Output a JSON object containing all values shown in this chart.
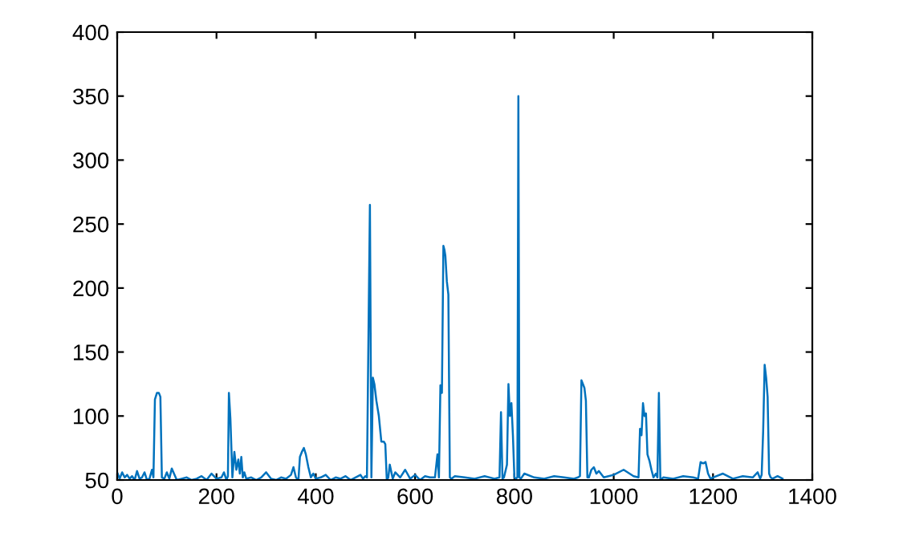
{
  "chart_data": {
    "type": "line",
    "xlim": [
      0,
      1400
    ],
    "ylim": [
      50,
      400
    ],
    "xticks": [
      0,
      200,
      400,
      600,
      800,
      1000,
      1200,
      1400
    ],
    "yticks": [
      50,
      100,
      150,
      200,
      250,
      300,
      350,
      400
    ],
    "grid": false,
    "series": [
      {
        "color": "#0072bd",
        "x": [
          1,
          5,
          10,
          15,
          20,
          25,
          30,
          35,
          40,
          45,
          50,
          55,
          60,
          65,
          70,
          73,
          76,
          80,
          84,
          87,
          90,
          95,
          100,
          105,
          110,
          120,
          130,
          140,
          150,
          160,
          170,
          180,
          190,
          200,
          210,
          215,
          220,
          223,
          225,
          228,
          232,
          236,
          240,
          244,
          247,
          250,
          253,
          256,
          260,
          270,
          280,
          290,
          300,
          310,
          320,
          330,
          340,
          350,
          355,
          360,
          365,
          368,
          372,
          376,
          380,
          385,
          390,
          395,
          400,
          410,
          420,
          430,
          440,
          450,
          460,
          470,
          480,
          490,
          495,
          500,
          503,
          506,
          509,
          512,
          515,
          518,
          522,
          527,
          532,
          537,
          540,
          543,
          546,
          549,
          555,
          560,
          570,
          580,
          590,
          600,
          610,
          620,
          630,
          640,
          645,
          648,
          651,
          654,
          657,
          659,
          661,
          664,
          667,
          670,
          673,
          680,
          700,
          720,
          740,
          760,
          770,
          773,
          776,
          779,
          785,
          788,
          791,
          794,
          797,
          800,
          803,
          806,
          808,
          810,
          813,
          820,
          840,
          860,
          880,
          900,
          920,
          928,
          932,
          935,
          938,
          941,
          944,
          947,
          950,
          955,
          960,
          965,
          970,
          980,
          1000,
          1020,
          1040,
          1050,
          1053,
          1056,
          1059,
          1062,
          1065,
          1068,
          1072,
          1076,
          1080,
          1085,
          1088,
          1091,
          1094,
          1100,
          1120,
          1140,
          1160,
          1170,
          1175,
          1180,
          1185,
          1190,
          1195,
          1200,
          1220,
          1240,
          1260,
          1280,
          1290,
          1295,
          1298,
          1301,
          1304,
          1307,
          1310,
          1313,
          1316,
          1320,
          1330,
          1340
        ],
        "values": [
          55,
          51,
          56,
          52,
          54,
          51,
          53,
          50,
          57,
          51,
          52,
          56,
          50,
          51,
          58,
          52,
          113,
          118,
          118,
          115,
          52,
          51,
          56,
          51,
          59,
          50,
          51,
          52,
          50,
          51,
          53,
          50,
          55,
          51,
          52,
          56,
          50,
          53,
          118,
          98,
          52,
          72,
          58,
          66,
          55,
          68,
          52,
          56,
          51,
          52,
          50,
          52,
          56,
          51,
          50,
          52,
          51,
          54,
          60,
          52,
          50,
          68,
          72,
          75,
          70,
          60,
          52,
          55,
          51,
          52,
          54,
          50,
          52,
          51,
          53,
          50,
          52,
          54,
          51,
          53,
          52,
          160,
          265,
          52,
          130,
          125,
          112,
          100,
          80,
          80,
          78,
          50,
          52,
          62,
          51,
          56,
          52,
          58,
          51,
          54,
          50,
          53,
          52,
          52,
          70,
          52,
          124,
          118,
          233,
          230,
          225,
          205,
          195,
          52,
          51,
          53,
          52,
          51,
          53,
          51,
          52,
          103,
          51,
          52,
          62,
          125,
          100,
          110,
          85,
          52,
          51,
          52,
          350,
          52,
          51,
          55,
          52,
          51,
          53,
          52,
          51,
          52,
          53,
          128,
          125,
          122,
          112,
          52,
          52,
          58,
          60,
          55,
          57,
          52,
          54,
          58,
          53,
          52,
          90,
          85,
          110,
          100,
          102,
          70,
          65,
          58,
          52,
          55,
          52,
          118,
          50,
          52,
          51,
          53,
          52,
          51,
          64,
          63,
          64,
          55,
          51,
          52,
          55,
          51,
          53,
          52,
          56,
          51,
          54,
          88,
          140,
          130,
          115,
          55,
          52,
          51,
          53,
          51
        ]
      }
    ]
  }
}
